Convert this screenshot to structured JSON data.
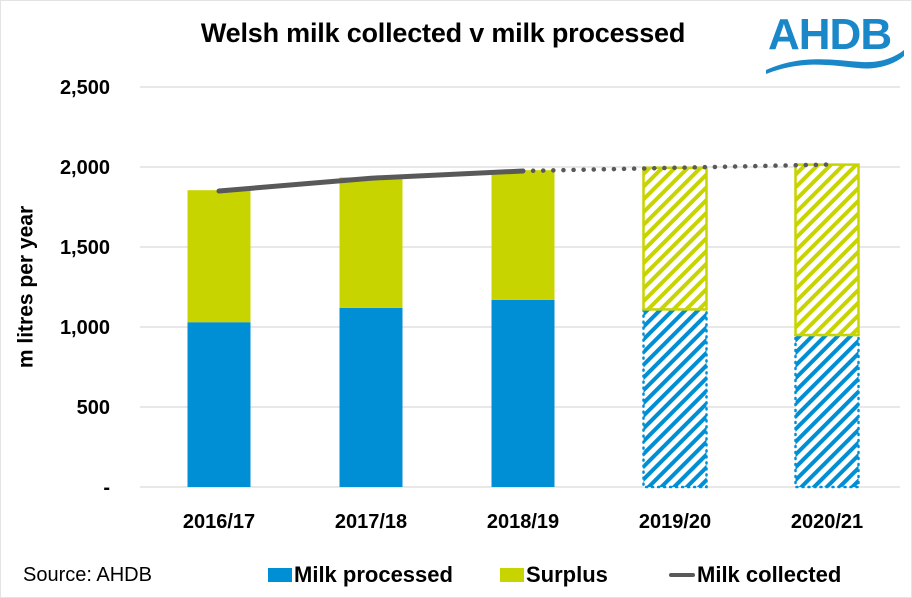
{
  "chart_data": {
    "type": "bar",
    "stacked": true,
    "title": "Welsh milk collected v milk processed",
    "xlabel": "",
    "ylabel": "m litres per year",
    "ylim": [
      0,
      2500
    ],
    "yticks": [
      0,
      500,
      1000,
      1500,
      2000,
      2500
    ],
    "ytick_labels": [
      "-",
      "500",
      "1,000",
      "1,500",
      "2,000",
      "2,500"
    ],
    "grid": true,
    "categories": [
      "2016/17",
      "2017/18",
      "2018/19",
      "2019/20",
      "2020/21"
    ],
    "forecast_from_index": 3,
    "series": [
      {
        "name": "Milk processed",
        "kind": "bar",
        "color": "#008fd5",
        "values": [
          1030,
          1120,
          1170,
          1110,
          950
        ]
      },
      {
        "name": "Surplus",
        "kind": "bar",
        "color": "#c8d400",
        "values": [
          825,
          815,
          810,
          885,
          1065
        ]
      },
      {
        "name": "Milk collected",
        "kind": "line",
        "color": "#595959",
        "values": [
          1850,
          1930,
          1975,
          1995,
          2015
        ]
      }
    ],
    "legend_position": "bottom",
    "annotations": [
      "Source: AHDB"
    ]
  },
  "logo": {
    "text": "AHDB",
    "color": "#1a87c9"
  },
  "footer": {
    "source": "Source: AHDB"
  },
  "legend": [
    {
      "label": "Milk processed",
      "color": "#008fd5"
    },
    {
      "label": "Surplus",
      "color": "#c8d400"
    },
    {
      "label": "Milk collected",
      "color": "#595959"
    }
  ]
}
